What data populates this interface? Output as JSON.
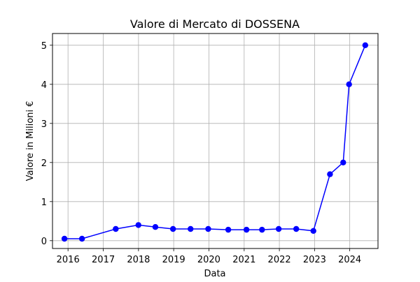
{
  "chart_data": {
    "type": "line",
    "title": "Valore di Mercato di DOSSENA",
    "xlabel": "Data",
    "ylabel": "Valore in Milioni €",
    "x_ticks": [
      "2016",
      "2017",
      "2018",
      "2019",
      "2020",
      "2021",
      "2022",
      "2023",
      "2024"
    ],
    "y_ticks": [
      "0",
      "1",
      "2",
      "3",
      "4",
      "5"
    ],
    "xlim": [
      "2015-07-24",
      "2024-10-20"
    ],
    "ylim": [
      -0.2,
      5.3
    ],
    "grid": true,
    "series": [
      {
        "color": "#0000ff",
        "marker": "circle",
        "points": [
          {
            "x": "2015-11-25",
            "y": 0.05
          },
          {
            "x": "2016-05-25",
            "y": 0.05
          },
          {
            "x": "2017-05-10",
            "y": 0.3
          },
          {
            "x": "2017-12-31",
            "y": 0.4
          },
          {
            "x": "2018-06-25",
            "y": 0.35
          },
          {
            "x": "2018-12-25",
            "y": 0.3
          },
          {
            "x": "2019-06-25",
            "y": 0.3
          },
          {
            "x": "2019-12-25",
            "y": 0.3
          },
          {
            "x": "2020-07-20",
            "y": 0.28
          },
          {
            "x": "2021-01-25",
            "y": 0.28
          },
          {
            "x": "2021-07-05",
            "y": 0.28
          },
          {
            "x": "2021-12-25",
            "y": 0.3
          },
          {
            "x": "2022-06-25",
            "y": 0.3
          },
          {
            "x": "2022-12-20",
            "y": 0.25
          },
          {
            "x": "2023-06-10",
            "y": 1.7
          },
          {
            "x": "2023-10-25",
            "y": 2.0
          },
          {
            "x": "2023-12-25",
            "y": 4.0
          },
          {
            "x": "2024-06-10",
            "y": 5.0
          }
        ]
      }
    ]
  }
}
